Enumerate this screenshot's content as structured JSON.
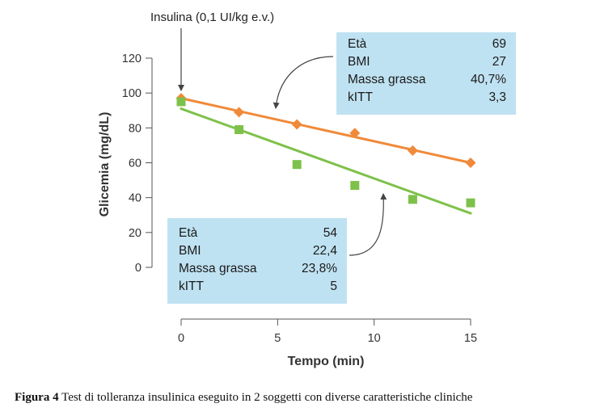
{
  "chart_data": {
    "type": "line",
    "title": "",
    "xlabel": "Tempo (min)",
    "ylabel": "Glicemia (mg/dL)",
    "xlim": [
      0,
      15
    ],
    "ylim": [
      0,
      120
    ],
    "xticks": [
      0,
      5,
      10,
      15
    ],
    "yticks": [
      0,
      20,
      40,
      60,
      80,
      100,
      120
    ],
    "grid": false,
    "series": [
      {
        "color": "#f08a3a",
        "marker": "diamond",
        "x": [
          0,
          3,
          6,
          9,
          12,
          15
        ],
        "y": [
          97,
          89,
          82,
          77,
          67,
          60
        ],
        "trend": [
          97,
          60
        ]
      },
      {
        "color": "#7ec14a",
        "marker": "square",
        "x": [
          0,
          3,
          6,
          9,
          12,
          15
        ],
        "y": [
          95,
          79,
          59,
          47,
          39,
          37
        ],
        "trend": [
          91,
          31
        ]
      }
    ],
    "annotations": {
      "insulin": {
        "text": "Insulina (0,1 UI/kg e.v.)",
        "x": 0
      },
      "boxes": [
        {
          "series": 0,
          "rows": [
            {
              "label": "Età",
              "value": "69"
            },
            {
              "label": "BMI",
              "value": "27"
            },
            {
              "label": "Massa grassa",
              "value": "40,7%"
            },
            {
              "label": "kITT",
              "value": "3,3"
            }
          ]
        },
        {
          "series": 1,
          "rows": [
            {
              "label": "Età",
              "value": "54"
            },
            {
              "label": "BMI",
              "value": "22,4"
            },
            {
              "label": "Massa grassa",
              "value": "23,8%"
            },
            {
              "label": "kITT",
              "value": "5"
            }
          ]
        }
      ]
    }
  },
  "caption": {
    "label": "Figura 4",
    "text": " Test di tolleranza insulinica eseguito in 2 soggetti con diverse caratteristiche cliniche"
  }
}
